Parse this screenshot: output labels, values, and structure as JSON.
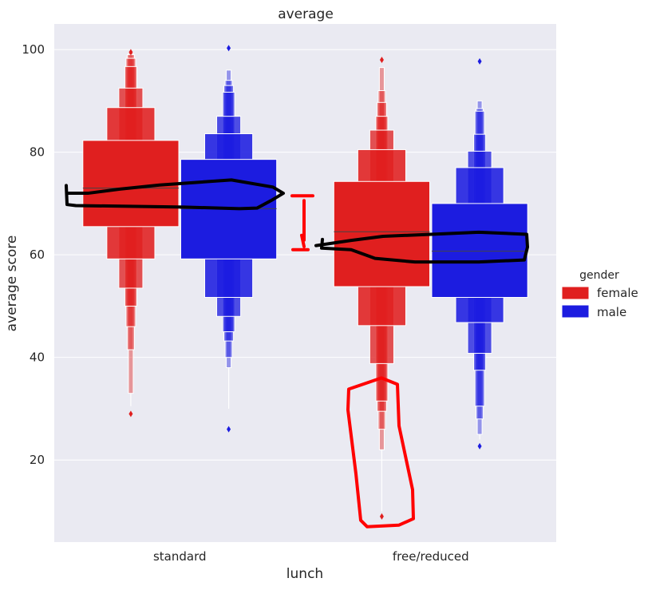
{
  "chart_data": {
    "type": "boxen",
    "title": "average",
    "xlabel": "lunch",
    "ylabel": "average score",
    "ylim": [
      4,
      105
    ],
    "yticks": [
      20,
      40,
      60,
      80,
      100
    ],
    "categories": [
      "standard",
      "free/reduced"
    ],
    "grid": true,
    "legend": {
      "title": "gender",
      "placement": "right",
      "entries": [
        {
          "name": "female",
          "color": "#e01f1f"
        },
        {
          "name": "male",
          "color": "#1c1ce0"
        }
      ]
    },
    "series": [
      {
        "name": "female",
        "color": "#e01f1f",
        "groups": [
          {
            "category": "standard",
            "median": 73,
            "boxes": [
              [
                65.5,
                82.3
              ],
              [
                59.2,
                88.7
              ],
              [
                53.5,
                92.5
              ],
              [
                50.0,
                96.7
              ],
              [
                46.0,
                98.3
              ],
              [
                41.5,
                99.0
              ],
              [
                33.0,
                99.3
              ]
            ],
            "whisker": [
              30.5,
              33.0
            ],
            "outliers": [
              29.0,
              99.5
            ]
          },
          {
            "category": "free/reduced",
            "median": 64.5,
            "boxes": [
              [
                53.8,
                74.3
              ],
              [
                46.2,
                80.5
              ],
              [
                38.8,
                84.3
              ],
              [
                31.5,
                87.0
              ],
              [
                29.5,
                89.7
              ],
              [
                26.0,
                92.0
              ],
              [
                22.0,
                96.5
              ]
            ],
            "whisker": [
              10.0,
              22.0
            ],
            "outliers": [
              9.0,
              98.0
            ]
          }
        ]
      },
      {
        "name": "male",
        "color": "#1c1ce0",
        "groups": [
          {
            "category": "standard",
            "median": 69,
            "boxes": [
              [
                59.2,
                78.6
              ],
              [
                51.7,
                83.6
              ],
              [
                48.0,
                87.0
              ],
              [
                45.0,
                91.7
              ],
              [
                43.2,
                93.0
              ],
              [
                40.0,
                94.0
              ],
              [
                38.0,
                96.0
              ]
            ],
            "whisker": [
              30.0,
              38.0
            ],
            "outliers": [
              26.0,
              100.3
            ]
          },
          {
            "category": "free/reduced",
            "median": 60.7,
            "boxes": [
              [
                51.7,
                70.0
              ],
              [
                46.8,
                77.0
              ],
              [
                40.8,
                80.2
              ],
              [
                37.5,
                83.5
              ],
              [
                30.5,
                88.0
              ],
              [
                28.0,
                88.5
              ],
              [
                25.0,
                90.0
              ]
            ],
            "whisker": [
              24.0,
              25.0
            ],
            "outliers": [
              22.7,
              97.7
            ]
          }
        ]
      }
    ],
    "annotations": [
      {
        "type": "black-freehand-loop",
        "color": "#000000",
        "note_for": "standard median",
        "value": 72
      },
      {
        "type": "black-freehand-loop",
        "color": "#000000",
        "note_for": "free/reduced median",
        "value": 61.5
      },
      {
        "type": "red-bracket",
        "color": "#ff0000",
        "range": [
          61,
          71.5
        ]
      },
      {
        "type": "red-freehand-loop",
        "color": "#ff0000",
        "range": [
          7,
          36
        ]
      }
    ]
  }
}
